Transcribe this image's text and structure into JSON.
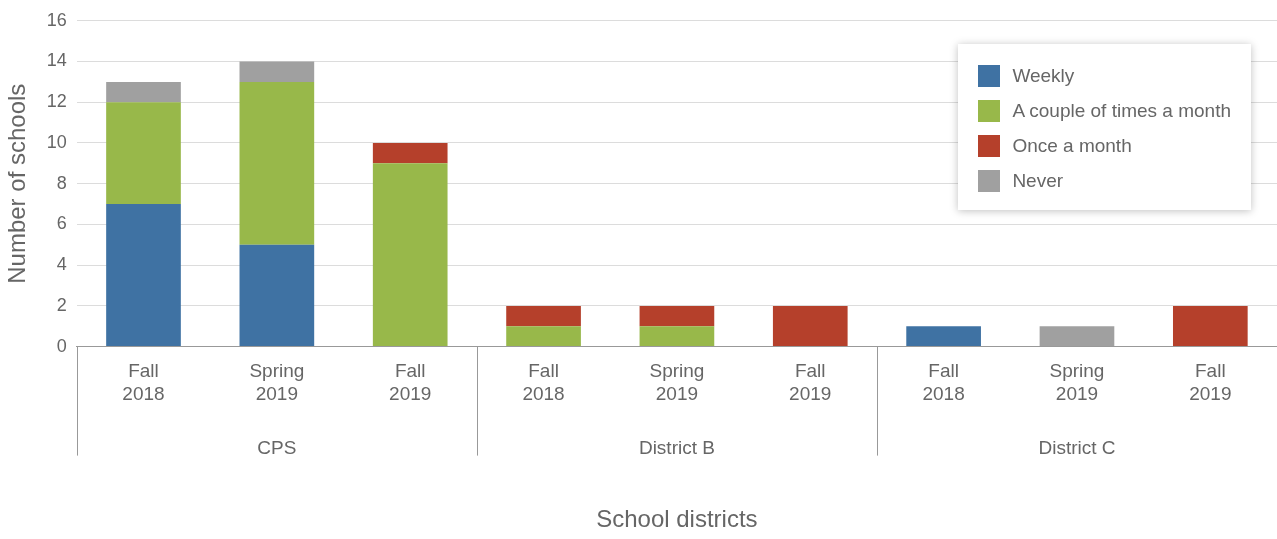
{
  "chart_data": {
    "type": "bar",
    "stacked": true,
    "xlabel": "School districts",
    "ylabel": "Number of schools",
    "categories": [
      "Fall 2018",
      "Spring 2019",
      "Fall 2019",
      "Fall 2018",
      "Spring 2019",
      "Fall 2019",
      "Fall 2018",
      "Spring 2019",
      "Fall 2019"
    ],
    "series": [
      {
        "name": "Weekly",
        "color": "#3f72a3",
        "values": [
          7,
          5,
          0,
          0,
          0,
          0,
          1,
          0,
          0
        ]
      },
      {
        "name": "A couple of times a month",
        "color": "#98b84a",
        "values": [
          5,
          8,
          9,
          1,
          1,
          0,
          0,
          0,
          0
        ]
      },
      {
        "name": "Once a month",
        "color": "#b5402b",
        "values": [
          0,
          0,
          1,
          1,
          1,
          2,
          0,
          0,
          2
        ]
      },
      {
        "name": "Never",
        "color": "#a0a0a0",
        "values": [
          1,
          1,
          0,
          0,
          0,
          0,
          0,
          1,
          0
        ]
      }
    ],
    "ylim": [
      0,
      16
    ],
    "yticks": [
      0,
      2,
      4,
      6,
      8,
      10,
      12,
      14,
      16
    ],
    "grid": "y",
    "legend": "top right",
    "annotations": [
      "CPS",
      "District B",
      "District C"
    ]
  }
}
